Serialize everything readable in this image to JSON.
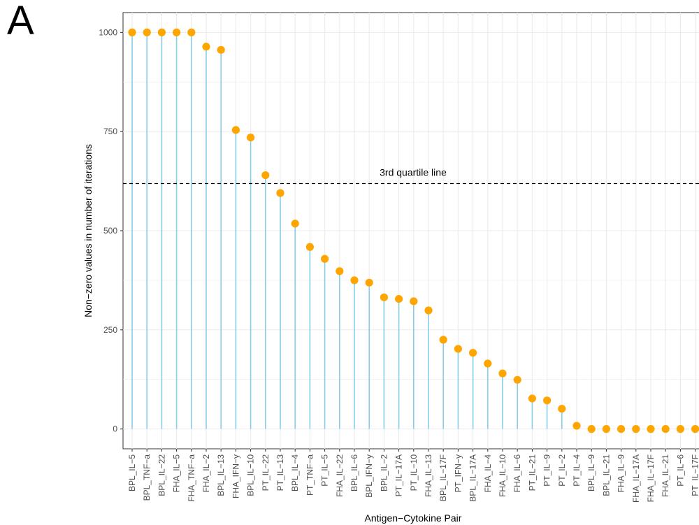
{
  "panel_label": "A",
  "chart_data": {
    "type": "lollipop",
    "xlabel": "Antigen−Cytokine Pair",
    "ylabel": "Non−zero values in number of iterations",
    "ylim": [
      -50,
      1050
    ],
    "yticks": [
      0,
      250,
      500,
      750,
      1000
    ],
    "grid": true,
    "colors": {
      "point": "#FFA500",
      "stem": "#87CEEB",
      "panel_border": "#333333",
      "grid": "#ebebeb"
    },
    "reference_line": {
      "label": "3rd quartile line",
      "value": 619,
      "style": "dashed"
    },
    "categories": [
      "BPL_IL−5",
      "BPL_TNF−a",
      "BPL_IL−22",
      "FHA_IL−5",
      "FHA_TNF−a",
      "FHA_IL−2",
      "BPL_IL−13",
      "FHA_IFN−y",
      "BPL_IL−10",
      "PT_IL−22",
      "PT_IL−13",
      "BPL_IL−4",
      "PT_TNF−a",
      "PT_IL−5",
      "FHA_IL−22",
      "BPL_IL−6",
      "BPL_IFN−y",
      "BPL_IL−2",
      "PT_IL−17A",
      "PT_IL−10",
      "FHA_IL−13",
      "BPL_IL−17F",
      "PT_IFN−y",
      "BPL_IL−17A",
      "FHA_IL−4",
      "FHA_IL−10",
      "FHA_IL−6",
      "PT_IL−21",
      "PT_IL−9",
      "PT_IL−2",
      "PT_IL−4",
      "BPL_IL−9",
      "BPL_IL−21",
      "FHA_IL−9",
      "FHA_IL−17A",
      "FHA_IL−17F",
      "FHA_IL−21",
      "PT_IL−6",
      "PT_IL−17F"
    ],
    "values": [
      1000,
      1000,
      1000,
      1000,
      1000,
      964,
      956,
      754,
      735,
      640,
      595,
      518,
      459,
      429,
      398,
      375,
      369,
      332,
      328,
      322,
      299,
      225,
      202,
      192,
      165,
      140,
      124,
      77,
      72,
      51,
      8,
      0,
      0,
      0,
      0,
      0,
      0,
      0,
      0
    ]
  }
}
